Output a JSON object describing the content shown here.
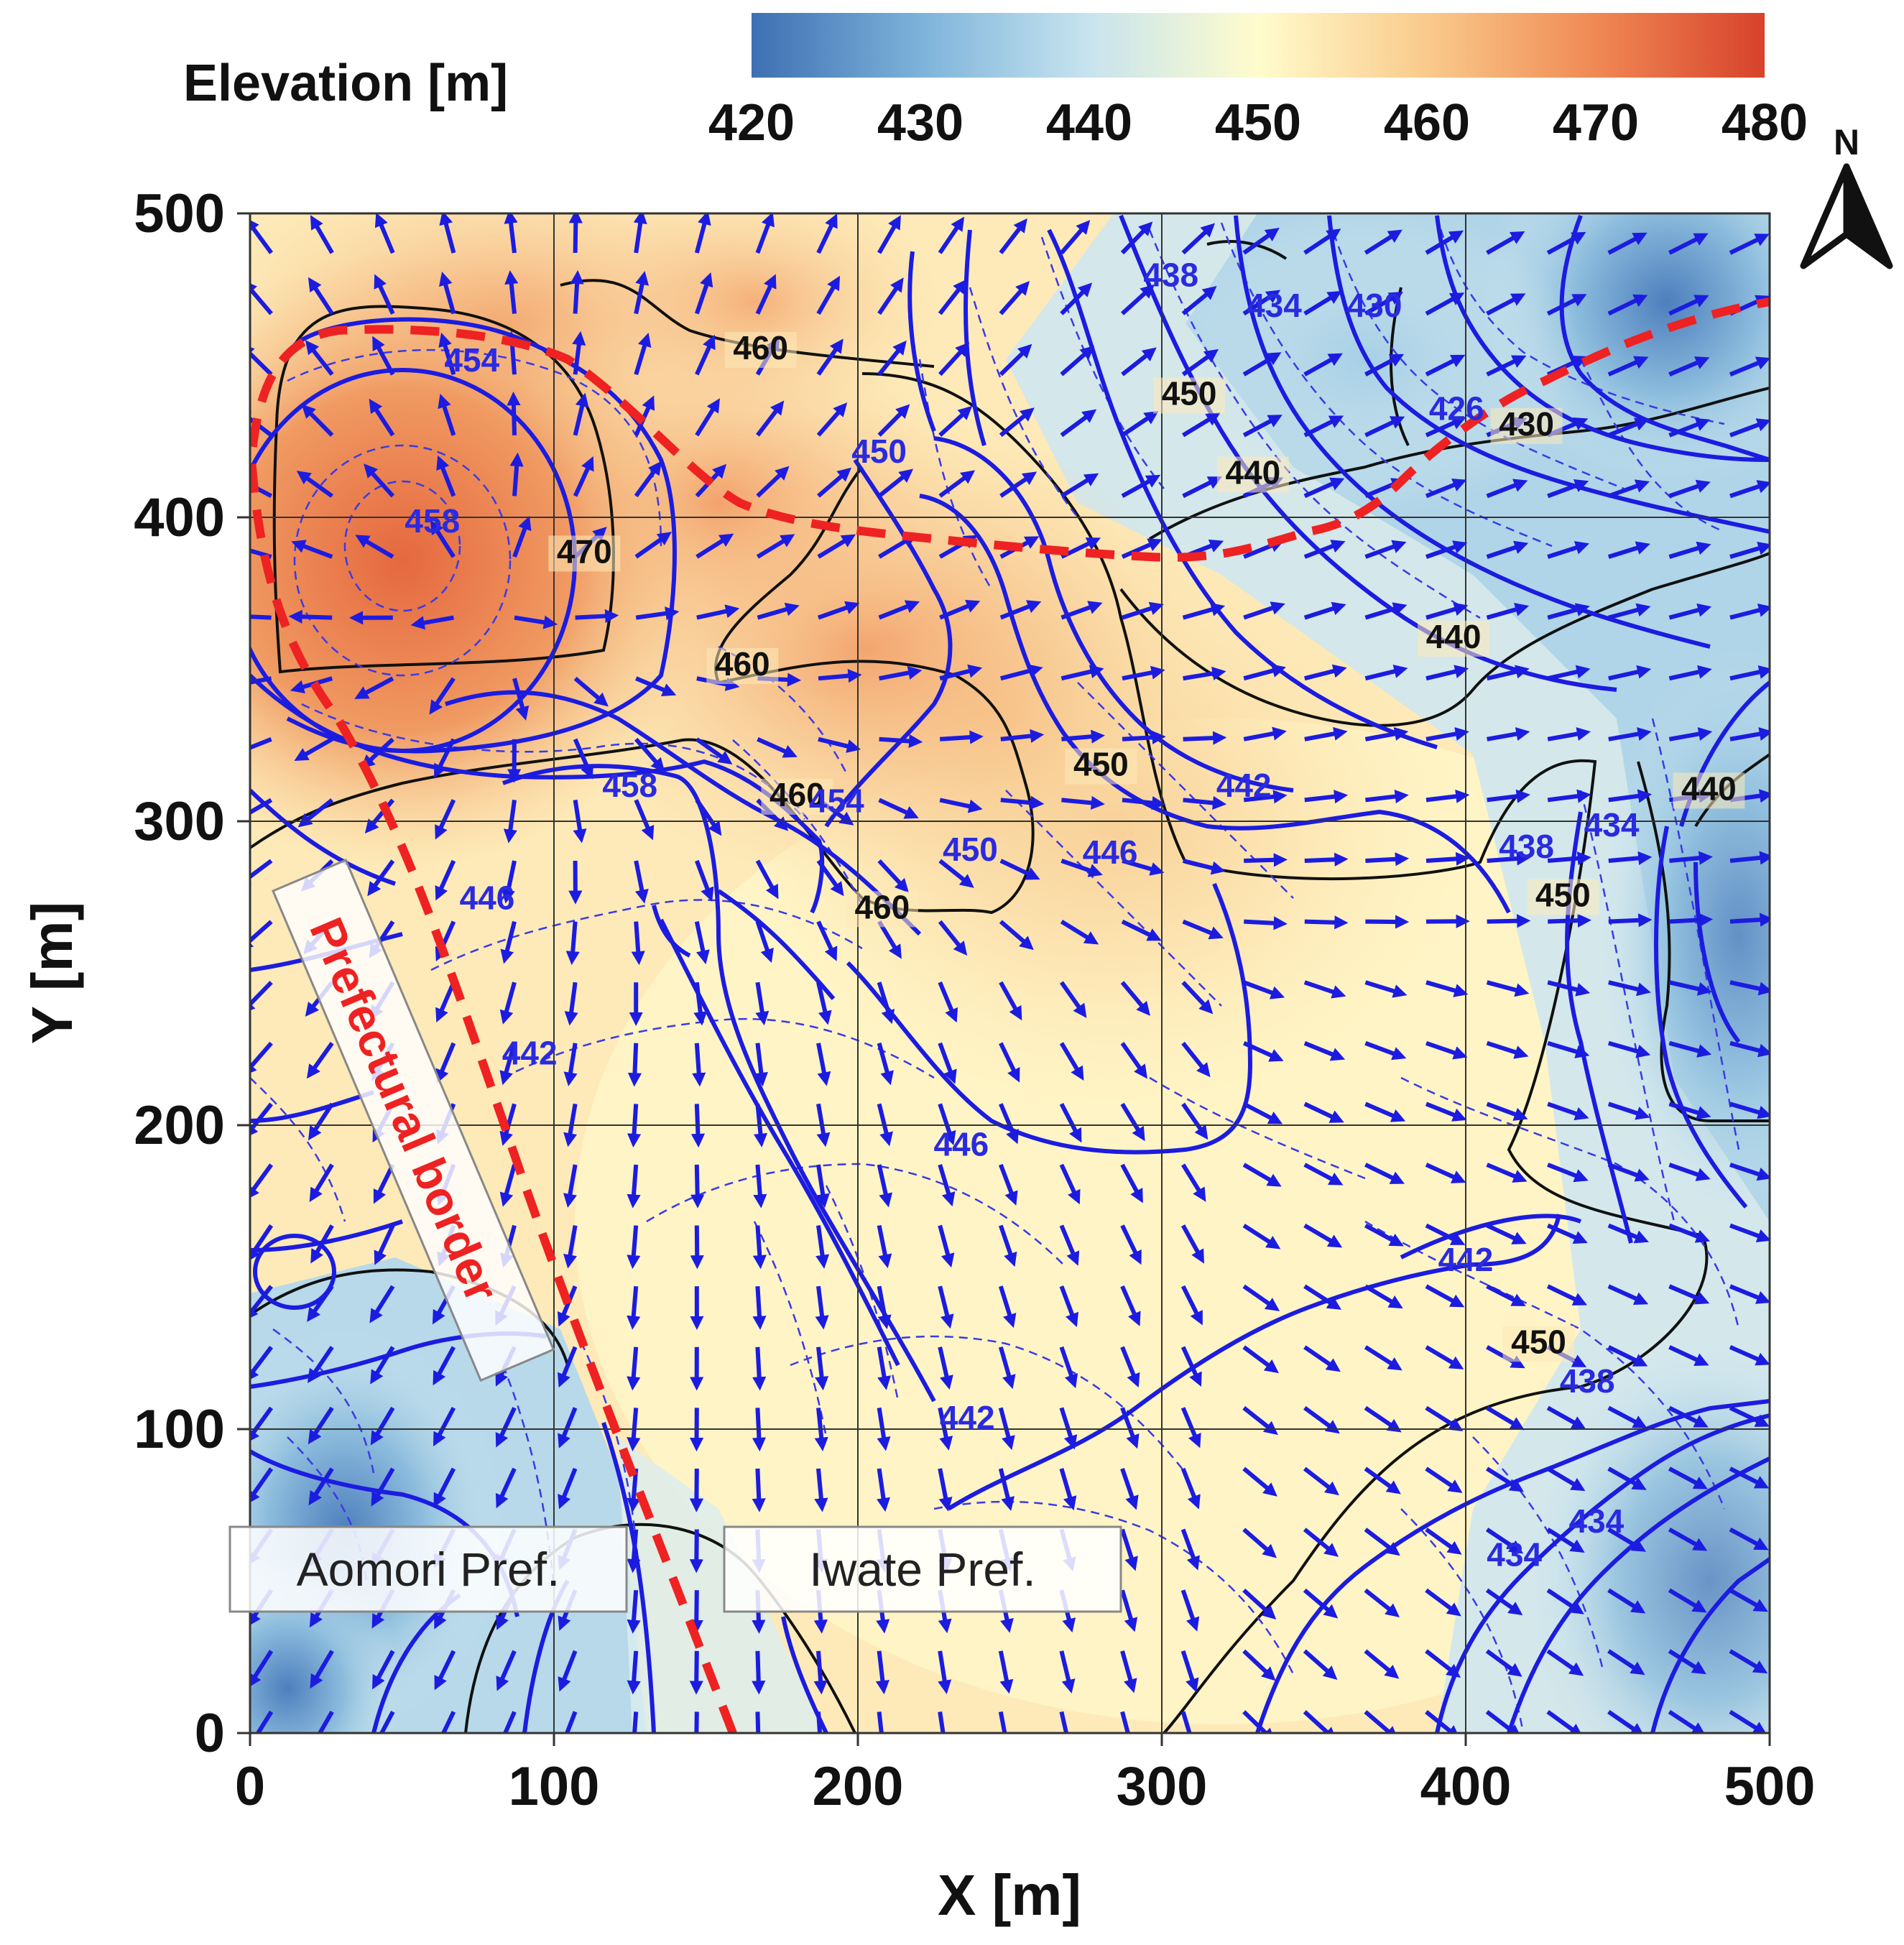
{
  "colorbar": {
    "title": "Elevation [m]",
    "ticks": [
      "420",
      "430",
      "440",
      "450",
      "460",
      "470",
      "480"
    ],
    "range": [
      420,
      480
    ],
    "colors": [
      "#3e6fb3",
      "#7eb4da",
      "#c6e3ef",
      "#fffccc",
      "#f9c98a",
      "#f08a55",
      "#d7422b"
    ]
  },
  "axes": {
    "x_label": "X [m]",
    "y_label": "Y [m]",
    "x_ticks": [
      "0",
      "100",
      "200",
      "300",
      "400",
      "500"
    ],
    "y_ticks": [
      "0",
      "100",
      "200",
      "300",
      "400",
      "500"
    ],
    "x_range": [
      0,
      500
    ],
    "y_range": [
      0,
      500
    ],
    "grid": true
  },
  "north_arrow": {
    "label": "N",
    "icon": "north-arrow-icon"
  },
  "regions": {
    "aomori": "Aomori Pref.",
    "iwate": "Iwate Pref.",
    "border": "Prefectural border",
    "border_color": "#ee2222"
  },
  "contour_labels": {
    "elevation": [
      {
        "text": "460",
        "x": 168,
        "y": 452
      },
      {
        "text": "470",
        "x": 110,
        "y": 385
      },
      {
        "text": "460",
        "x": 162,
        "y": 348
      },
      {
        "text": "460",
        "x": 180,
        "y": 305
      },
      {
        "text": "460",
        "x": 208,
        "y": 268
      },
      {
        "text": "450",
        "x": 280,
        "y": 315
      },
      {
        "text": "450",
        "x": 309,
        "y": 437
      },
      {
        "text": "440",
        "x": 330,
        "y": 411
      },
      {
        "text": "430",
        "x": 420,
        "y": 427
      },
      {
        "text": "440",
        "x": 396,
        "y": 357
      },
      {
        "text": "440",
        "x": 480,
        "y": 307
      },
      {
        "text": "450",
        "x": 432,
        "y": 272
      },
      {
        "text": "450",
        "x": 424,
        "y": 125
      }
    ],
    "groundwater": [
      {
        "text": "454",
        "x": 73,
        "y": 448
      },
      {
        "text": "458",
        "x": 60,
        "y": 395
      },
      {
        "text": "458",
        "x": 125,
        "y": 308
      },
      {
        "text": "454",
        "x": 193,
        "y": 303
      },
      {
        "text": "450",
        "x": 237,
        "y": 287
      },
      {
        "text": "450",
        "x": 207,
        "y": 418
      },
      {
        "text": "446",
        "x": 283,
        "y": 286
      },
      {
        "text": "446",
        "x": 78,
        "y": 271
      },
      {
        "text": "442",
        "x": 92,
        "y": 220
      },
      {
        "text": "442",
        "x": 236,
        "y": 100
      },
      {
        "text": "446",
        "x": 234,
        "y": 190
      },
      {
        "text": "442",
        "x": 327,
        "y": 308
      },
      {
        "text": "442",
        "x": 400,
        "y": 152
      },
      {
        "text": "438",
        "x": 303,
        "y": 476
      },
      {
        "text": "434",
        "x": 337,
        "y": 466
      },
      {
        "text": "430",
        "x": 370,
        "y": 466
      },
      {
        "text": "426",
        "x": 397,
        "y": 432
      },
      {
        "text": "438",
        "x": 420,
        "y": 288
      },
      {
        "text": "434",
        "x": 448,
        "y": 295
      },
      {
        "text": "438",
        "x": 440,
        "y": 112
      },
      {
        "text": "434",
        "x": 416,
        "y": 55
      },
      {
        "text": "434",
        "x": 443,
        "y": 66
      }
    ]
  }
}
